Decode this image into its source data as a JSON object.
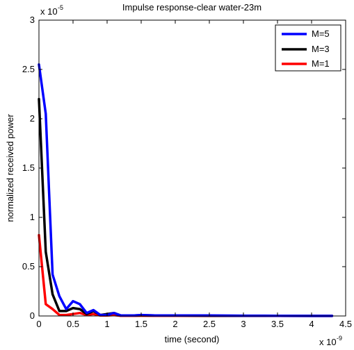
{
  "chart_data": {
    "type": "line",
    "title": "Impulse response-clear water-23m",
    "xlabel": "time (second)",
    "ylabel": "normalized received power",
    "x_multiplier": "x 10",
    "x_exponent": "-9",
    "y_multiplier": "x 10",
    "y_exponent": "-5",
    "xlim": [
      0,
      4.5
    ],
    "ylim": [
      0,
      3
    ],
    "x_ticks": [
      "0",
      "0.5",
      "1",
      "1.5",
      "2",
      "2.5",
      "3",
      "3.5",
      "4",
      "4.5"
    ],
    "y_ticks": [
      "0",
      "0.5",
      "1",
      "1.5",
      "2",
      "2.5",
      "3"
    ],
    "x_tick_values": [
      0,
      0.5,
      1,
      1.5,
      2,
      2.5,
      3,
      3.5,
      4,
      4.5
    ],
    "y_tick_values": [
      0,
      0.5,
      1,
      1.5,
      2,
      2.5,
      3
    ],
    "grid": false,
    "legend_position": "top-right",
    "x": [
      0,
      0.1,
      0.2,
      0.3,
      0.4,
      0.5,
      0.6,
      0.7,
      0.8,
      0.9,
      1.0,
      1.1,
      1.2,
      1.3,
      1.4,
      1.5,
      1.7,
      2.0,
      2.5,
      3.0,
      3.5,
      4.0,
      4.3
    ],
    "series": [
      {
        "name": "M=5",
        "color": "#0000ff",
        "values": [
          2.55,
          2.05,
          0.42,
          0.2,
          0.07,
          0.15,
          0.12,
          0.03,
          0.06,
          0.01,
          0.01,
          0.03,
          0.005,
          0.005,
          0.005,
          0.01,
          0.005,
          0.005,
          0.005,
          0.003,
          0.002,
          0.001,
          0.001
        ]
      },
      {
        "name": "M=3",
        "color": "#000000",
        "values": [
          2.2,
          0.65,
          0.22,
          0.05,
          0.05,
          0.08,
          0.07,
          0.02,
          0.05,
          0.01,
          0.02,
          0.03,
          0.005,
          0.005,
          0.005,
          0.008,
          0.005,
          0.004,
          0.003,
          0.002,
          0.002,
          0.001,
          0.001
        ]
      },
      {
        "name": "M=1",
        "color": "#ff0000",
        "values": [
          0.82,
          0.12,
          0.07,
          0.01,
          0.01,
          0.02,
          0.03,
          0.01,
          0.02,
          0.005,
          0.005,
          0.01,
          0.002,
          0.002,
          0.002,
          0.003,
          0.002,
          0.002,
          0.001,
          0.001,
          0.001,
          0.001,
          0.001
        ]
      }
    ]
  }
}
